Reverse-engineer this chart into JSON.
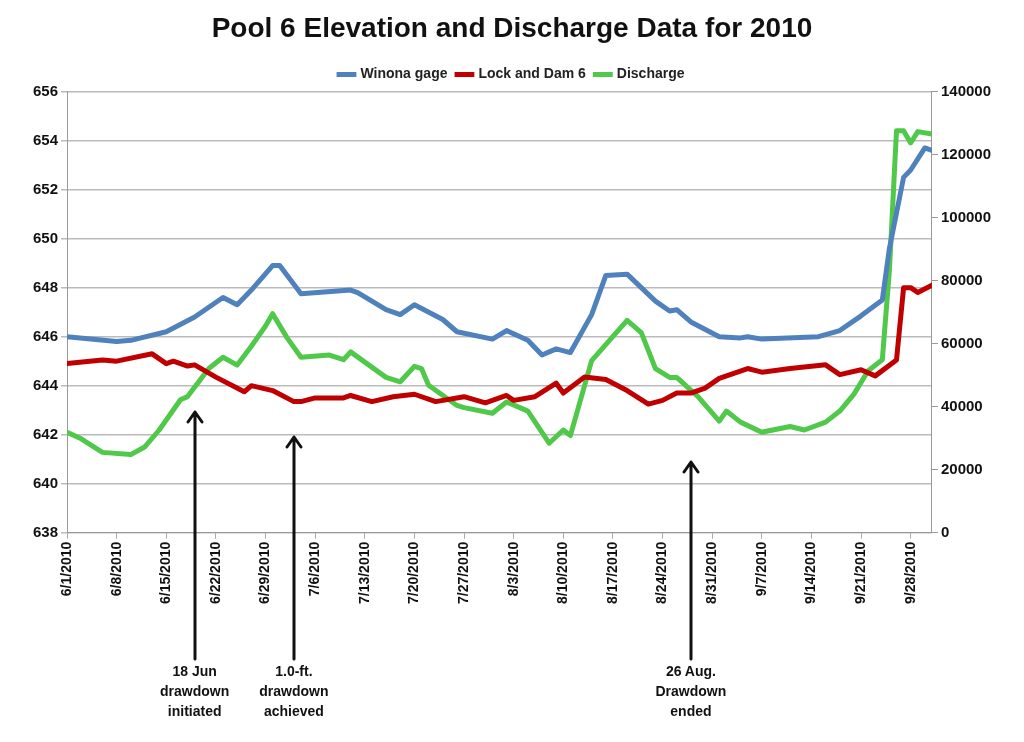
{
  "chart_data": {
    "type": "line",
    "title": "Pool 6 Elevation and Discharge Data for 2010",
    "xlim": [
      "2010-06-01",
      "2010-10-01"
    ],
    "xticks": [
      {
        "value": "2010-06-01",
        "label": "6/1/2010"
      },
      {
        "value": "2010-06-08",
        "label": "6/8/2010"
      },
      {
        "value": "2010-06-15",
        "label": "6/15/2010"
      },
      {
        "value": "2010-06-22",
        "label": "6/22/2010"
      },
      {
        "value": "2010-06-29",
        "label": "6/29/2010"
      },
      {
        "value": "2010-07-06",
        "label": "7/6/2010"
      },
      {
        "value": "2010-07-13",
        "label": "7/13/2010"
      },
      {
        "value": "2010-07-20",
        "label": "7/20/2010"
      },
      {
        "value": "2010-07-27",
        "label": "7/27/2010"
      },
      {
        "value": "2010-08-03",
        "label": "8/3/2010"
      },
      {
        "value": "2010-08-10",
        "label": "8/10/2010"
      },
      {
        "value": "2010-08-17",
        "label": "8/17/2010"
      },
      {
        "value": "2010-08-24",
        "label": "8/24/2010"
      },
      {
        "value": "2010-08-31",
        "label": "8/31/2010"
      },
      {
        "value": "2010-09-07",
        "label": "9/7/2010"
      },
      {
        "value": "2010-09-14",
        "label": "9/14/2010"
      },
      {
        "value": "2010-09-21",
        "label": "9/21/2010"
      },
      {
        "value": "2010-09-28",
        "label": "9/28/2010"
      }
    ],
    "ylim": [
      638,
      656
    ],
    "yticks": [
      638,
      640,
      642,
      644,
      646,
      648,
      650,
      652,
      654,
      656
    ],
    "y2lim": [
      0,
      140000
    ],
    "y2ticks": [
      0,
      20000,
      40000,
      60000,
      80000,
      100000,
      120000,
      140000
    ],
    "grid": "y",
    "legend": "top",
    "marker": "none",
    "line_style": "solid",
    "series": [
      {
        "name": "Winona gage",
        "color": "#4f81bd",
        "x": [
          "2010-06-01",
          "2010-06-08",
          "2010-06-10",
          "2010-06-15",
          "2010-06-19",
          "2010-06-23",
          "2010-06-25",
          "2010-06-27",
          "2010-06-30",
          "2010-07-01",
          "2010-07-04",
          "2010-07-11",
          "2010-07-12",
          "2010-07-16",
          "2010-07-18",
          "2010-07-20",
          "2010-07-24",
          "2010-07-26",
          "2010-07-31",
          "2010-08-02",
          "2010-08-05",
          "2010-08-07",
          "2010-08-09",
          "2010-08-11",
          "2010-08-14",
          "2010-08-16",
          "2010-08-19",
          "2010-08-23",
          "2010-08-25",
          "2010-08-26",
          "2010-08-28",
          "2010-09-01",
          "2010-09-04",
          "2010-09-05",
          "2010-09-07",
          "2010-09-15",
          "2010-09-18",
          "2010-09-21",
          "2010-09-24",
          "2010-09-25",
          "2010-09-27",
          "2010-09-28",
          "2010-09-30",
          "2010-10-01"
        ],
        "values": [
          646.0,
          645.8,
          645.85,
          646.2,
          646.8,
          647.6,
          647.3,
          647.9,
          648.9,
          648.9,
          647.75,
          647.9,
          647.8,
          647.1,
          646.9,
          647.3,
          646.7,
          646.2,
          645.9,
          646.25,
          645.85,
          645.25,
          645.5,
          645.35,
          646.9,
          648.5,
          648.55,
          647.45,
          647.05,
          647.1,
          646.6,
          646.0,
          645.95,
          646.0,
          645.9,
          646.0,
          646.25,
          646.85,
          647.5,
          649.6,
          652.5,
          652.8,
          653.7,
          653.6
        ]
      },
      {
        "name": "Lock and Dam 6",
        "color": "#c00000",
        "x": [
          "2010-06-01",
          "2010-06-06",
          "2010-06-08",
          "2010-06-13",
          "2010-06-15",
          "2010-06-16",
          "2010-06-18",
          "2010-06-19",
          "2010-06-22",
          "2010-06-26",
          "2010-06-27",
          "2010-06-30",
          "2010-07-03",
          "2010-07-04",
          "2010-07-06",
          "2010-07-10",
          "2010-07-11",
          "2010-07-14",
          "2010-07-17",
          "2010-07-20",
          "2010-07-23",
          "2010-07-27",
          "2010-07-30",
          "2010-08-02",
          "2010-08-03",
          "2010-08-06",
          "2010-08-09",
          "2010-08-10",
          "2010-08-13",
          "2010-08-16",
          "2010-08-19",
          "2010-08-22",
          "2010-08-24",
          "2010-08-26",
          "2010-08-28",
          "2010-08-30",
          "2010-09-01",
          "2010-09-05",
          "2010-09-07",
          "2010-09-11",
          "2010-09-16",
          "2010-09-18",
          "2010-09-21",
          "2010-09-23",
          "2010-09-26",
          "2010-09-27",
          "2010-09-28",
          "2010-09-29",
          "2010-10-01"
        ],
        "values": [
          644.9,
          645.05,
          645.0,
          645.3,
          644.9,
          645.0,
          644.8,
          644.85,
          644.35,
          643.75,
          644.0,
          643.8,
          643.35,
          643.35,
          643.5,
          643.5,
          643.6,
          643.35,
          643.55,
          643.65,
          643.35,
          643.55,
          643.3,
          643.6,
          643.4,
          643.55,
          644.1,
          643.7,
          644.35,
          644.25,
          643.8,
          643.25,
          643.4,
          643.7,
          643.7,
          643.9,
          644.3,
          644.7,
          644.55,
          644.7,
          644.85,
          644.45,
          644.65,
          644.4,
          645.05,
          648.0,
          648.0,
          647.8,
          648.1
        ]
      },
      {
        "name": "Discharge",
        "color": "#50c84a",
        "axis": "y2",
        "x": [
          "2010-06-01",
          "2010-06-03",
          "2010-06-06",
          "2010-06-10",
          "2010-06-12",
          "2010-06-14",
          "2010-06-17",
          "2010-06-18",
          "2010-06-21",
          "2010-06-23",
          "2010-06-25",
          "2010-06-27",
          "2010-06-29",
          "2010-06-30",
          "2010-07-02",
          "2010-07-04",
          "2010-07-08",
          "2010-07-10",
          "2010-07-11",
          "2010-07-16",
          "2010-07-18",
          "2010-07-20",
          "2010-07-21",
          "2010-07-22",
          "2010-07-26",
          "2010-07-27",
          "2010-07-31",
          "2010-08-02",
          "2010-08-05",
          "2010-08-08",
          "2010-08-10",
          "2010-08-11",
          "2010-08-14",
          "2010-08-19",
          "2010-08-21",
          "2010-08-23",
          "2010-08-25",
          "2010-08-26",
          "2010-08-29",
          "2010-09-01",
          "2010-09-02",
          "2010-09-04",
          "2010-09-07",
          "2010-09-11",
          "2010-09-13",
          "2010-09-16",
          "2010-09-18",
          "2010-09-20",
          "2010-09-22",
          "2010-09-24",
          "2010-09-25",
          "2010-09-26",
          "2010-09-27",
          "2010-09-28",
          "2010-09-29",
          "2010-10-01"
        ],
        "values": [
          31900,
          29800,
          25500,
          24800,
          27300,
          32600,
          42200,
          43200,
          52100,
          55700,
          53200,
          59200,
          65600,
          69500,
          62000,
          55700,
          56400,
          54900,
          57400,
          49300,
          47900,
          52800,
          52100,
          46800,
          40400,
          39700,
          37900,
          41500,
          38600,
          28400,
          32600,
          30800,
          54600,
          67400,
          63500,
          52100,
          49300,
          49300,
          43200,
          35400,
          38600,
          35100,
          31900,
          33700,
          32600,
          35100,
          38600,
          44000,
          51400,
          54900,
          83300,
          127600,
          127600,
          123700,
          127300,
          126500
        ]
      }
    ],
    "annotations": [
      {
        "text": "18 Jun\ndrawdown\ninitiated",
        "x": "2010-06-19"
      },
      {
        "text": "1.0-ft.\ndrawdown\nachieved",
        "x": "2010-07-03"
      },
      {
        "text": "26 Aug.\nDrawdown\nended",
        "x": "2010-08-28"
      }
    ]
  }
}
